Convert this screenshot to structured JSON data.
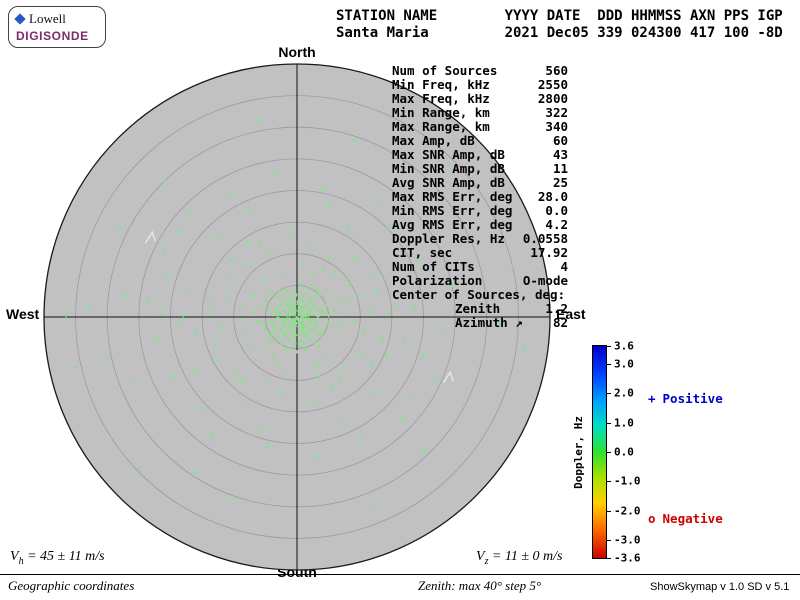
{
  "colors": {
    "disk": "#c1c1c1",
    "disk_edge": "#1a1a1a",
    "ring": "#9b9b9b",
    "axis": "#111111",
    "marker": "#7de87d",
    "chevron": "#e8e8e8",
    "positive": "#0000cc",
    "negative": "#cc0000",
    "logo_blue": "#2757c4",
    "logo_purple": "#7d2b66"
  },
  "logo": {
    "brand": "Lowell",
    "product": "DIGISONDE"
  },
  "header": {
    "line1": "STATION NAME        YYYY DATE  DDD HHMMSS AXN PPS IGP",
    "line2": "Santa Maria         2021 Dec05 339 024300 417 100 -8D"
  },
  "compass": {
    "north": "North",
    "south": "South",
    "east": "East",
    "west": "West"
  },
  "stats": {
    "rows": [
      {
        "label": "Num of Sources",
        "value": "560"
      },
      {
        "label": "Min Freq, kHz",
        "value": "2550"
      },
      {
        "label": "Max Freq, kHz",
        "value": "2800"
      },
      {
        "label": "Min Range, km",
        "value": "322"
      },
      {
        "label": "Max Range, km",
        "value": "340"
      },
      {
        "label": "Max Amp, dB",
        "value": "60"
      },
      {
        "label": "Max SNR Amp, dB",
        "value": "43"
      },
      {
        "label": "Min SNR Amp, dB",
        "value": "11"
      },
      {
        "label": "Avg SNR Amp, dB",
        "value": "25"
      },
      {
        "label": "Max RMS Err, deg",
        "value": "28.0"
      },
      {
        "label": "Min RMS Err, deg",
        "value": "0.0"
      },
      {
        "label": "Avg RMS Err, deg",
        "value": "4.2"
      },
      {
        "label": "Doppler Res, Hz",
        "value": "0.0558"
      },
      {
        "label": "CIT, sec",
        "value": "17.92"
      },
      {
        "label": "Num of CITs",
        "value": "4"
      },
      {
        "label": "Polarization",
        "value": "O-mode"
      },
      {
        "label": "Center of Sources, deg:"
      },
      {
        "label": "Zenith",
        "value": "1.2",
        "indent": true
      },
      {
        "label": "Azimuth ↗",
        "value": "82",
        "indent": true
      }
    ]
  },
  "chart_data": {
    "type": "scatter",
    "projection": "polar zenith-azimuth skymap",
    "zenith_max_deg": 40,
    "ring_step_deg": 5,
    "center_of_sources": {
      "zenith_deg": 1.2,
      "azimuth_deg": 82
    },
    "marker": "+",
    "note": "approximate reconstruction of the ~560 plotted near-zero-Doppler O-mode sources (green '+' marks); units are degrees offset from zenith, +x=East, +y=North",
    "colorbar": {
      "title": "Doppler, Hz",
      "min": -3.6,
      "max": 3.6,
      "ticks": [
        "3.6",
        "3.0",
        "2.0",
        "1.0",
        "0.0",
        "-1.0",
        "-2.0",
        "-3.0",
        "-3.6"
      ],
      "gradient": [
        "#0000c8 0%",
        "#0040ff 13%",
        "#00a0ff 26%",
        "#00e0c0 38%",
        "#30e030 50%",
        "#a8e000 62%",
        "#ffd000 74%",
        "#ff7000 86%",
        "#cc0000 100%"
      ]
    },
    "legend": {
      "positive": {
        "symbol": "+",
        "label": "Positive"
      },
      "negative": {
        "symbol": "o",
        "label": "Negative"
      }
    },
    "extra_marks": [
      {
        "x_deg": -23.2,
        "y_deg": 12.6
      },
      {
        "x_deg": 23.9,
        "y_deg": -9.5
      }
    ],
    "points_deg": [
      [
        0.1,
        -0.4
      ],
      [
        0.8,
        -1.2
      ],
      [
        -0.6,
        -0.9
      ],
      [
        1.5,
        -0.3
      ],
      [
        -1.2,
        0.2
      ],
      [
        0.4,
        0.6
      ],
      [
        2.1,
        -1.0
      ],
      [
        -2.3,
        -1.4
      ],
      [
        1.0,
        0.9
      ],
      [
        -0.3,
        1.3
      ],
      [
        0.6,
        -2.1
      ],
      [
        -1.8,
        -0.6
      ],
      [
        2.6,
        0.4
      ],
      [
        -0.9,
        -2.4
      ],
      [
        1.9,
        1.2
      ],
      [
        3.1,
        -0.8
      ],
      [
        -2.8,
        0.7
      ],
      [
        0.2,
        2.0
      ],
      [
        -1.5,
        1.8
      ],
      [
        2.4,
        -2.2
      ],
      [
        -3.4,
        -1.1
      ],
      [
        1.2,
        -3.0
      ],
      [
        0.9,
        2.6
      ],
      [
        -0.5,
        -3.3
      ],
      [
        3.6,
        1.0
      ],
      [
        -2.1,
        2.4
      ],
      [
        4.1,
        -0.4
      ],
      [
        -3.9,
        0.3
      ],
      [
        1.7,
        -1.8
      ],
      [
        -1.1,
        -1.7
      ],
      [
        0.5,
        -0.9
      ],
      [
        -0.2,
        -1.5
      ],
      [
        1.3,
        0.1
      ],
      [
        -1.6,
        -0.2
      ],
      [
        0.7,
        1.5
      ],
      [
        2.2,
        0.8
      ],
      [
        -2.5,
        -2.0
      ],
      [
        3.0,
        -1.6
      ],
      [
        -0.8,
        0.9
      ],
      [
        1.6,
        2.2
      ],
      [
        -3.1,
        1.5
      ],
      [
        0.3,
        -2.7
      ],
      [
        2.8,
        2.0
      ],
      [
        -4.2,
        -0.7
      ],
      [
        4.4,
        0.6
      ],
      [
        -1.4,
        3.0
      ],
      [
        1.1,
        -4.1
      ],
      [
        -0.1,
        3.5
      ],
      [
        2.0,
        -3.5
      ],
      [
        -2.9,
        -3.0
      ],
      [
        0.0,
        -0.1
      ],
      [
        -0.4,
        0.3
      ],
      [
        0.9,
        -0.6
      ],
      [
        -1.0,
        -1.1
      ],
      [
        1.4,
        -1.4
      ],
      [
        -1.9,
        0.9
      ],
      [
        2.5,
        -0.5
      ],
      [
        -0.7,
        -2.0
      ],
      [
        0.6,
        0.2
      ],
      [
        1.8,
        0.5
      ],
      [
        -2.2,
        -0.3
      ],
      [
        3.3,
        0.1
      ],
      [
        -3.6,
        -2.2
      ],
      [
        0.8,
        3.1
      ],
      [
        -1.3,
        -3.6
      ],
      [
        4.0,
        -2.0
      ],
      [
        -4.5,
        1.2
      ],
      [
        2.3,
        3.0
      ],
      [
        -2.6,
        1.9
      ],
      [
        1.5,
        -2.6
      ],
      [
        -0.6,
        2.8
      ],
      [
        3.8,
        -3.0
      ],
      [
        0.4,
        -4.6
      ],
      [
        -3.3,
        3.1
      ],
      [
        5.0,
        0.2
      ],
      [
        -5.2,
        -0.9
      ],
      [
        2.9,
        -4.0
      ],
      [
        -1.7,
        4.2
      ],
      [
        0.2,
        1.0
      ],
      [
        -0.9,
        1.6
      ],
      [
        1.0,
        -2.2
      ],
      [
        -2.0,
        -2.7
      ],
      [
        2.7,
        1.5
      ],
      [
        -3.0,
        -0.1
      ],
      [
        0.5,
        4.0
      ],
      [
        -0.3,
        -4.2
      ],
      [
        4.6,
        1.8
      ],
      [
        -4.1,
        -2.8
      ],
      [
        1.9,
        4.4
      ],
      [
        -2.4,
        -4.3
      ],
      [
        3.4,
        3.5
      ],
      [
        -4.8,
        2.5
      ],
      [
        5.5,
        -1.5
      ],
      [
        -0.1,
        -1.0
      ],
      [
        0.3,
        0.8
      ],
      [
        -0.8,
        -0.4
      ],
      [
        1.2,
        1.8
      ],
      [
        -1.5,
        -1.9
      ],
      [
        2.1,
        -0.9
      ],
      [
        -2.7,
        0.4
      ],
      [
        0.7,
        -3.8
      ],
      [
        -1.1,
        2.2
      ],
      [
        3.2,
        -2.5
      ],
      [
        -3.7,
        -1.6
      ],
      [
        1.4,
        3.6
      ],
      [
        -0.5,
        -0.6
      ],
      [
        0.1,
        2.4
      ],
      [
        2.6,
        -1.9
      ],
      [
        -2.1,
        -0.8
      ],
      [
        1.6,
        0.3
      ],
      [
        -1.3,
        0.6
      ],
      [
        0.9,
        -1.6
      ],
      [
        -0.2,
        -2.9
      ],
      [
        2.2,
        2.5
      ],
      [
        -3.2,
        -3.5
      ],
      [
        4.3,
        3.0
      ],
      [
        -4.4,
        -3.8
      ],
      [
        5.8,
        1.0
      ],
      [
        -5.6,
        1.8
      ],
      [
        3.9,
        0.9
      ],
      [
        -0.7,
        3.9
      ],
      [
        1.3,
        -5.0
      ],
      [
        -2.8,
        4.0
      ],
      [
        4.9,
        -1.0
      ],
      [
        -5.0,
        -2.0
      ],
      [
        0.6,
        5.2
      ],
      [
        -1.9,
        -5.1
      ],
      [
        3.5,
        -4.5
      ],
      [
        -4.0,
        3.8
      ],
      [
        2.4,
        5.0
      ],
      [
        0.0,
        -5.5
      ],
      [
        -3.5,
        0.9
      ],
      [
        1.8,
        -0.2
      ],
      [
        -0.4,
        1.9
      ],
      [
        2.0,
        1.1
      ],
      [
        -1.6,
        -2.9
      ],
      [
        0.8,
        0.0
      ],
      [
        -2.3,
        2.9
      ],
      [
        3.1,
        4.2
      ],
      [
        -0.9,
        -4.8
      ],
      [
        6.5,
        -1.2
      ],
      [
        -7.0,
        0.8
      ],
      [
        2.5,
        6.8
      ],
      [
        -3.0,
        -7.2
      ],
      [
        7.8,
        2.4
      ],
      [
        -8.2,
        -2.0
      ],
      [
        4.6,
        -6.4
      ],
      [
        -5.2,
        5.8
      ],
      [
        8.8,
        -0.6
      ],
      [
        -9.0,
        1.5
      ],
      [
        1.0,
        8.5
      ],
      [
        -1.5,
        -8.8
      ],
      [
        9.5,
        3.5
      ],
      [
        -10.0,
        -3.0
      ],
      [
        6.0,
        7.0
      ],
      [
        -6.5,
        -6.8
      ],
      [
        10.5,
        -2.2
      ],
      [
        -11.0,
        2.8
      ],
      [
        3.5,
        -9.5
      ],
      [
        -4.0,
        9.8
      ],
      [
        11.5,
        1.0
      ],
      [
        -12.0,
        -1.5
      ],
      [
        7.5,
        -8.0
      ],
      [
        -8.0,
        8.2
      ],
      [
        12.5,
        4.0
      ],
      [
        -13.0,
        -4.5
      ],
      [
        2.0,
        11.5
      ],
      [
        -2.5,
        -12.0
      ],
      [
        13.5,
        -3.5
      ],
      [
        -14.0,
        3.0
      ],
      [
        9.0,
        9.5
      ],
      [
        -9.5,
        -9.0
      ],
      [
        14.5,
        0.5
      ],
      [
        -6.8,
        3.4
      ],
      [
        5.5,
        -11.0
      ],
      [
        -5.8,
        11.5
      ],
      [
        6.2,
        2.8
      ],
      [
        -7.4,
        -4.6
      ],
      [
        8.4,
        5.2
      ],
      [
        -10.8,
        6.4
      ],
      [
        4.2,
        7.4
      ],
      [
        -3.8,
        -6.2
      ],
      [
        10.2,
        -5.8
      ],
      [
        -12.6,
        -6.8
      ],
      [
        7.0,
        0.5
      ],
      [
        -6.2,
        -0.8
      ],
      [
        3.2,
        -7.8
      ],
      [
        -2.2,
        7.0
      ],
      [
        11.8,
        -7.5
      ],
      [
        -13.8,
        1.2
      ],
      [
        5.0,
        9.2
      ],
      [
        -8.8,
        -10.2
      ],
      [
        12.2,
        6.5
      ],
      [
        -4.6,
        -10.5
      ],
      [
        6.8,
        -9.8
      ],
      [
        -10.2,
        9.0
      ],
      [
        14.2,
        -6.0
      ],
      [
        -7.8,
        12.0
      ],
      [
        2.8,
        -13.5
      ],
      [
        -1.2,
        13.0
      ],
      [
        15.5,
        2.0
      ],
      [
        -16.0,
        -2.5
      ],
      [
        8.0,
        14.0
      ],
      [
        -9.0,
        -13.5
      ],
      [
        17.0,
        -4.0
      ],
      [
        -17.5,
        4.5
      ],
      [
        12.0,
        -12.0
      ],
      [
        -12.5,
        12.5
      ],
      [
        18.5,
        1.5
      ],
      [
        -19.0,
        -1.0
      ],
      [
        5.0,
        17.5
      ],
      [
        -5.5,
        -18.0
      ],
      [
        20.0,
        -6.0
      ],
      [
        -20.5,
        6.5
      ],
      [
        14.5,
        14.0
      ],
      [
        -15.0,
        -14.5
      ],
      [
        21.5,
        3.0
      ],
      [
        -22.0,
        -3.5
      ],
      [
        10.0,
        -19.0
      ],
      [
        -10.5,
        19.5
      ],
      [
        23.0,
        -2.0
      ],
      [
        -23.5,
        2.5
      ],
      [
        16.5,
        -16.0
      ],
      [
        -17.0,
        16.5
      ],
      [
        24.5,
        5.0
      ],
      [
        -16.2,
        -8.5
      ],
      [
        3.0,
        -22.0
      ],
      [
        -3.5,
        22.5
      ],
      [
        19.0,
        9.0
      ],
      [
        -19.5,
        -9.5
      ],
      [
        7.0,
        -16.5
      ],
      [
        -7.5,
        17.0
      ],
      [
        22.0,
        -10.0
      ],
      [
        -21.0,
        10.5
      ],
      [
        13.0,
        18.0
      ],
      [
        -13.5,
        -18.5
      ],
      [
        18.0,
        -13.0
      ],
      [
        -18.5,
        13.5
      ],
      [
        4.0,
        20.0
      ],
      [
        -4.5,
        -20.5
      ],
      [
        26.0,
        -3.0
      ],
      [
        -27.0,
        3.5
      ],
      [
        15.0,
        24.0
      ],
      [
        -16.0,
        -24.5
      ],
      [
        29.0,
        6.0
      ],
      [
        -30.0,
        -6.5
      ],
      [
        20.0,
        -21.0
      ],
      [
        -21.0,
        21.5
      ],
      [
        32.0,
        -1.0
      ],
      [
        -33.0,
        1.5
      ],
      [
        9.0,
        28.0
      ],
      [
        -10.0,
        -28.5
      ],
      [
        34.0,
        8.0
      ],
      [
        -35.0,
        -8.0
      ],
      [
        24.0,
        24.0
      ],
      [
        -25.0,
        -24.0
      ],
      [
        36.0,
        -5.0
      ],
      [
        -28.0,
        14.0
      ],
      [
        12.0,
        -30.0
      ],
      [
        -6.0,
        31.0
      ],
      [
        -36.5,
        0.2
      ],
      [
        -26.0,
        -10.5
      ],
      [
        -21.5,
        0.4
      ],
      [
        -18.0,
        -0.2
      ]
    ]
  },
  "footer": {
    "vh": {
      "v": "V",
      "sub": "h",
      "rest": " = 45 ± 11 m/s"
    },
    "vz": {
      "v": "V",
      "sub": "z",
      "rest": " = 11 ± 0 m/s"
    },
    "coords": "Geographic coordinates",
    "zenith_info": "Zenith: max 40° step 5°",
    "version": "ShowSkymap v 1.0  SD v 5.1"
  }
}
